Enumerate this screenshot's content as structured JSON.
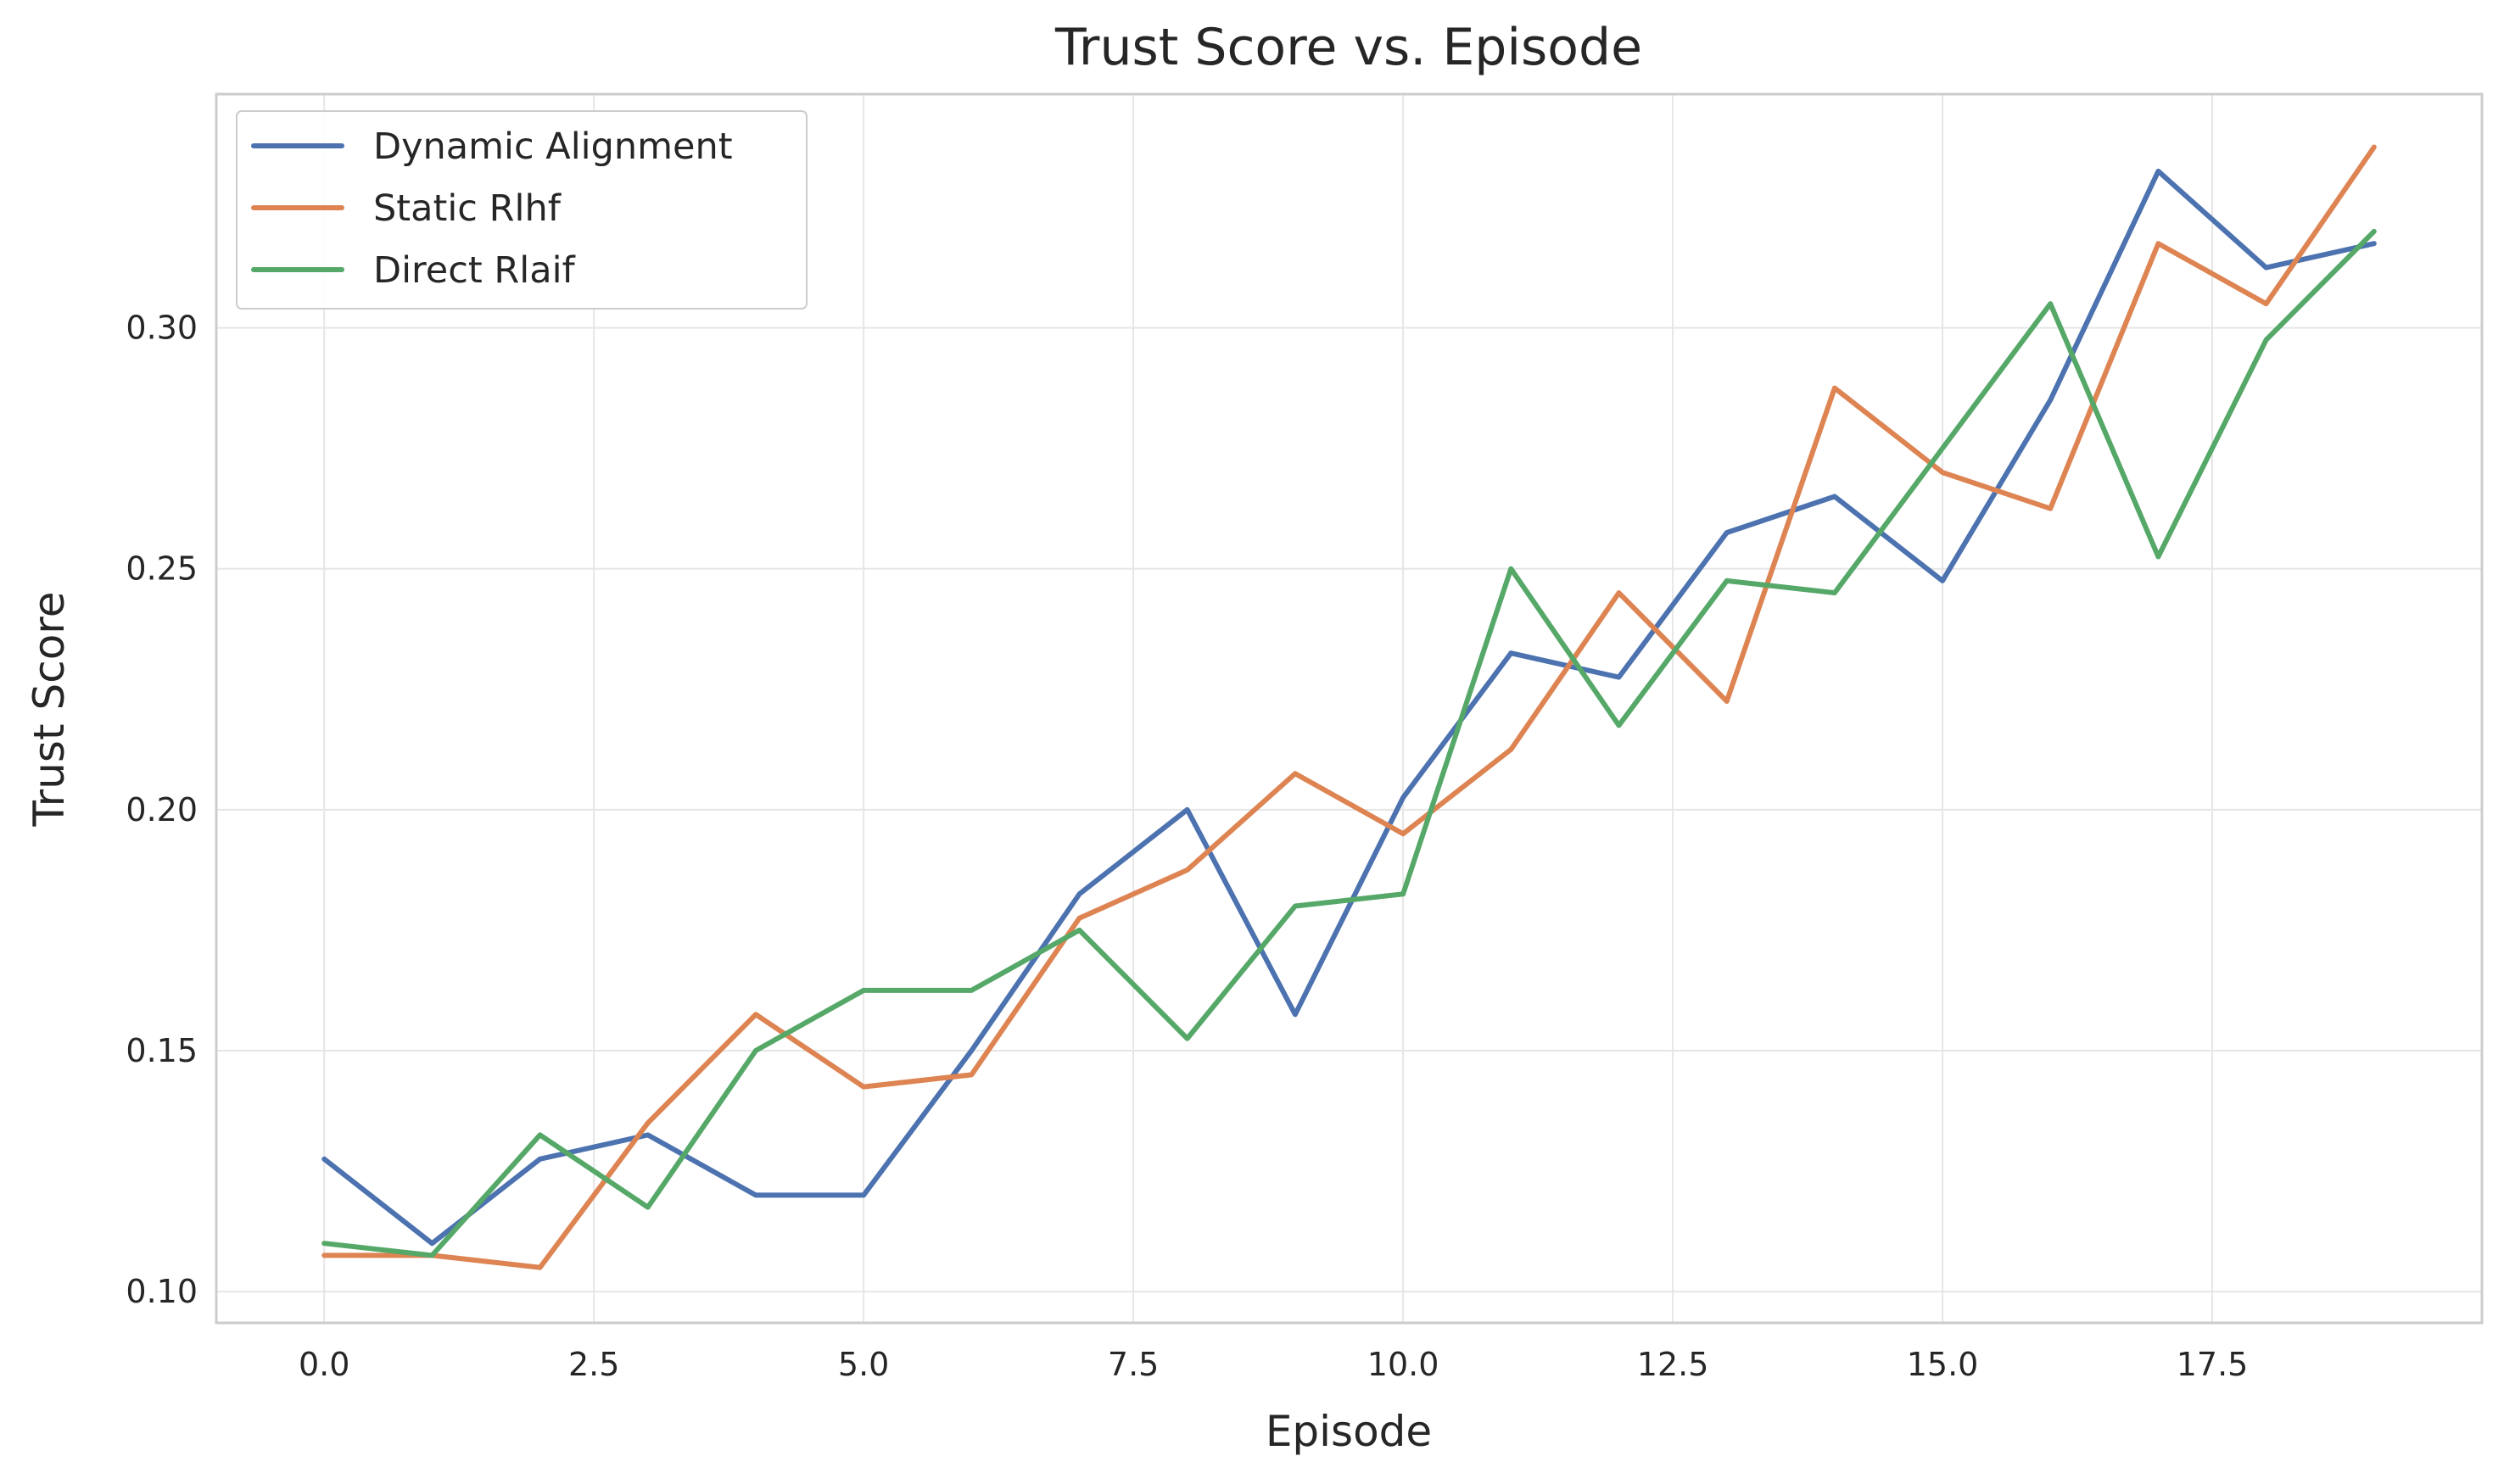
{
  "chart_data": {
    "type": "line",
    "title": "Trust Score vs. Episode",
    "xlabel": "Episode",
    "ylabel": "Trust Score",
    "xlim": [
      -1.0,
      20.0
    ],
    "ylim": [
      0.0935,
      0.3485
    ],
    "x_ticks": [
      0.0,
      2.5,
      5.0,
      7.5,
      10.0,
      12.5,
      15.0,
      17.5
    ],
    "x_tick_labels": [
      "0.0",
      "2.5",
      "5.0",
      "7.5",
      "10.0",
      "12.5",
      "15.0",
      "17.5"
    ],
    "y_ticks": [
      0.1,
      0.15,
      0.2,
      0.25,
      0.3
    ],
    "y_tick_labels": [
      "0.10",
      "0.15",
      "0.20",
      "0.25",
      "0.30"
    ],
    "grid": true,
    "legend_position": "top-left",
    "x": [
      0,
      1,
      2,
      3,
      4,
      5,
      6,
      7,
      8,
      9,
      10,
      11,
      12,
      13,
      14,
      15,
      16,
      17,
      18,
      19
    ],
    "series": [
      {
        "name": "Dynamic Alignment",
        "color": "#4c72b0",
        "values": [
          0.1275,
          0.11,
          0.1275,
          0.1325,
          0.12,
          0.12,
          0.15,
          0.1825,
          0.2,
          0.1575,
          0.2025,
          0.2325,
          0.2275,
          0.2575,
          0.265,
          0.2475,
          0.285,
          0.3325,
          0.3125,
          0.3175
        ]
      },
      {
        "name": "Static Rlhf",
        "color": "#dd8452",
        "values": [
          0.1075,
          0.1075,
          0.105,
          0.135,
          0.1575,
          0.1425,
          0.145,
          0.1775,
          0.1875,
          0.2075,
          0.195,
          0.2125,
          0.245,
          0.2225,
          0.2875,
          0.27,
          0.2625,
          0.3175,
          0.305,
          0.3375
        ]
      },
      {
        "name": "Direct Rlaif",
        "color": "#55a868",
        "values": [
          0.11,
          0.1075,
          0.1325,
          0.1175,
          0.15,
          0.1625,
          0.1625,
          0.175,
          0.1525,
          0.18,
          0.1825,
          0.25,
          0.2175,
          0.2475,
          0.245,
          0.275,
          0.305,
          0.2525,
          0.2975,
          0.32
        ]
      }
    ]
  }
}
